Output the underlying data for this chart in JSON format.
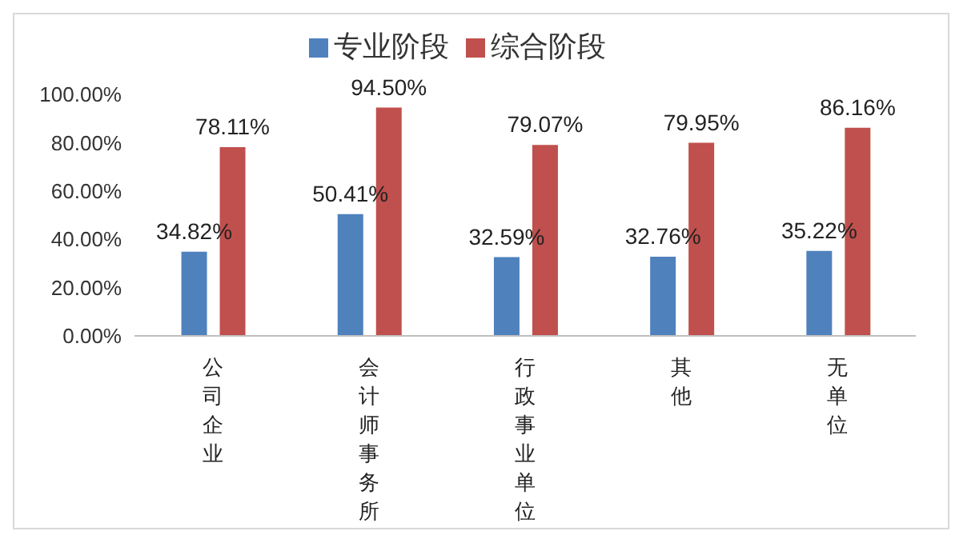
{
  "chart_data": {
    "type": "bar",
    "categories": [
      "公司企业",
      "会计师事务所",
      "行政事业单位",
      "其他",
      "无单位"
    ],
    "series": [
      {
        "name": "专业阶段",
        "color": "#4f81bd",
        "values": [
          34.82,
          50.41,
          32.59,
          32.76,
          35.22
        ],
        "value_labels": [
          "34.82%",
          "50.41%",
          "32.59%",
          "32.76%",
          "35.22%"
        ]
      },
      {
        "name": "综合阶段",
        "color": "#c0504d",
        "values": [
          78.11,
          94.5,
          79.07,
          79.95,
          86.16
        ],
        "value_labels": [
          "78.11%",
          "94.50%",
          "79.07%",
          "79.95%",
          "86.16%"
        ]
      }
    ],
    "ylim": [
      0,
      100
    ],
    "yticks": [
      {
        "value": 0,
        "label": "0.00%"
      },
      {
        "value": 20,
        "label": "20.00%"
      },
      {
        "value": 40,
        "label": "40.00%"
      },
      {
        "value": 60,
        "label": "60.00%"
      },
      {
        "value": 80,
        "label": "80.00%"
      },
      {
        "value": 100,
        "label": "100.00%"
      }
    ],
    "grid": false,
    "legend": "top"
  }
}
